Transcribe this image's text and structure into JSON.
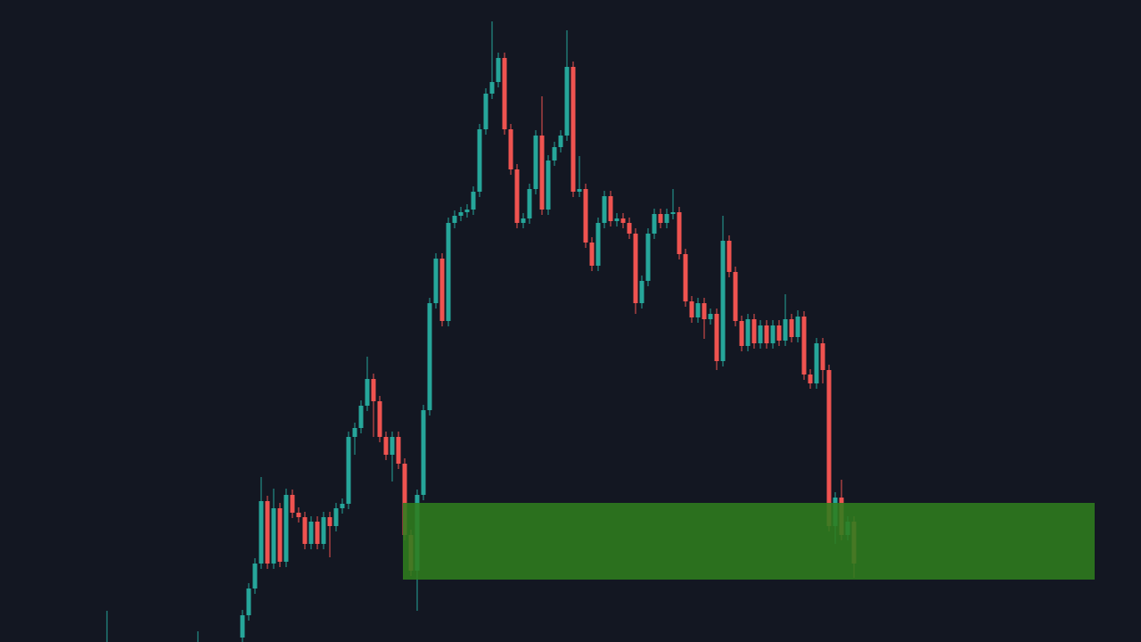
{
  "chart_data": {
    "type": "candlestick",
    "ylim": [
      0,
      720
    ],
    "up_color": "#26a69a",
    "down_color": "#ef5350",
    "zone": {
      "low": 70,
      "high": 156,
      "color": "#2f7d1e"
    },
    "open": [
      5,
      30,
      60,
      88,
      158,
      88,
      150,
      90,
      165,
      145,
      140,
      110,
      135,
      110,
      140,
      130,
      150,
      155,
      230,
      240,
      265,
      295,
      270,
      230,
      210,
      230,
      200,
      120,
      80,
      165,
      260,
      380,
      430,
      360,
      470,
      478,
      482,
      485,
      505,
      575,
      615,
      628,
      655,
      575,
      530,
      470,
      475,
      508,
      568,
      485,
      540,
      555,
      568,
      645,
      505,
      508,
      448,
      422,
      470,
      500,
      472,
      475,
      470,
      458,
      380,
      405,
      458,
      480,
      470,
      480,
      482,
      435,
      382,
      364,
      380,
      362,
      368,
      315,
      450,
      415,
      360,
      332,
      362,
      335,
      355,
      335,
      355,
      338,
      362,
      342,
      365,
      300,
      290,
      335,
      305,
      130,
      162,
      120,
      135
    ],
    "high": [
      36,
      66,
      94,
      185,
      164,
      172,
      156,
      172,
      171,
      151,
      146,
      141,
      141,
      146,
      146,
      156,
      161,
      236,
      246,
      271,
      320,
      301,
      276,
      236,
      236,
      236,
      206,
      126,
      171,
      266,
      386,
      436,
      436,
      476,
      484,
      488,
      491,
      511,
      581,
      621,
      696,
      661,
      661,
      581,
      536,
      481,
      514,
      574,
      612,
      546,
      561,
      574,
      686,
      651,
      545,
      514,
      454,
      476,
      506,
      506,
      481,
      481,
      476,
      464,
      411,
      464,
      486,
      486,
      486,
      508,
      488,
      441,
      388,
      386,
      386,
      374,
      374,
      478,
      456,
      421,
      366,
      368,
      368,
      361,
      361,
      361,
      361,
      390,
      368,
      372,
      371,
      306,
      341,
      341,
      311,
      168,
      182,
      141,
      141
    ],
    "low": [
      0,
      24,
      54,
      82,
      82,
      82,
      84,
      84,
      139,
      134,
      104,
      104,
      104,
      104,
      95,
      124,
      144,
      149,
      210,
      234,
      259,
      230,
      224,
      204,
      180,
      194,
      114,
      74,
      35,
      159,
      254,
      374,
      354,
      354,
      464,
      472,
      476,
      479,
      499,
      569,
      609,
      622,
      569,
      524,
      464,
      464,
      469,
      502,
      479,
      479,
      534,
      549,
      562,
      499,
      499,
      442,
      416,
      416,
      464,
      466,
      466,
      464,
      452,
      368,
      374,
      399,
      452,
      464,
      464,
      474,
      429,
      376,
      358,
      358,
      340,
      356,
      305,
      309,
      409,
      354,
      326,
      326,
      329,
      329,
      329,
      329,
      332,
      332,
      336,
      336,
      294,
      284,
      284,
      290,
      124,
      110,
      114,
      114,
      72
    ],
    "close": [
      30,
      60,
      88,
      158,
      88,
      150,
      90,
      165,
      145,
      140,
      110,
      135,
      110,
      140,
      130,
      150,
      155,
      230,
      240,
      265,
      295,
      270,
      230,
      210,
      230,
      200,
      120,
      80,
      165,
      260,
      380,
      430,
      360,
      470,
      478,
      482,
      485,
      505,
      575,
      615,
      628,
      655,
      575,
      530,
      470,
      475,
      508,
      568,
      485,
      540,
      555,
      568,
      645,
      505,
      508,
      448,
      422,
      470,
      500,
      472,
      475,
      470,
      458,
      380,
      405,
      458,
      480,
      470,
      480,
      482,
      435,
      382,
      364,
      380,
      362,
      368,
      315,
      450,
      415,
      360,
      332,
      362,
      335,
      355,
      335,
      355,
      338,
      362,
      342,
      365,
      300,
      290,
      335,
      305,
      130,
      162,
      120,
      135,
      88
    ]
  }
}
